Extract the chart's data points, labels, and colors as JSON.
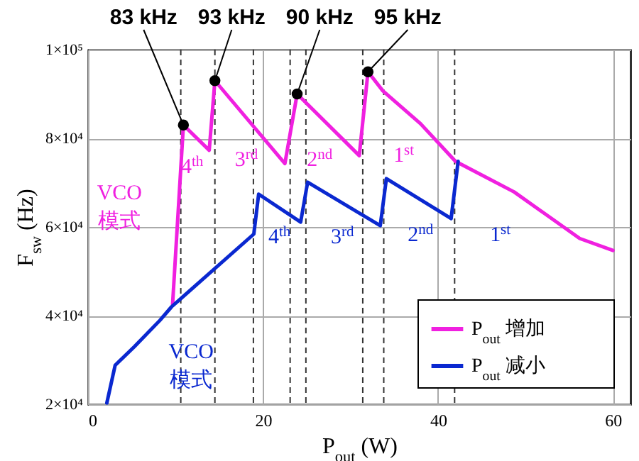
{
  "chart_data": {
    "type": "line",
    "xlabel": "P$_{out}$ (W)",
    "ylabel": "F$_{sw}$ (Hz)",
    "xlim": [
      0,
      62
    ],
    "xticks": [
      0,
      20,
      40,
      60
    ],
    "ylim": [
      20000,
      100000
    ],
    "yticks": [
      {
        "value": 20000,
        "label": "2×10⁴"
      },
      {
        "value": 40000,
        "label": "4×10⁴"
      },
      {
        "value": 60000,
        "label": "6×10⁴"
      },
      {
        "value": 80000,
        "label": "8×10⁴"
      },
      {
        "value": 100000,
        "label": "1×10⁵"
      }
    ],
    "grid": true,
    "legend": "bottom right",
    "marker": "none",
    "series": [
      {
        "name": "P$_{out}$ 增加",
        "color": "#f020e0",
        "x": [
          9.66,
          10.9,
          13.85,
          14.5,
          22.5,
          23.9,
          31.0,
          32.0,
          33.7,
          38.0,
          42.0,
          48.7,
          56.2,
          60.0
        ],
        "values": [
          42500,
          83000,
          77300,
          93000,
          74300,
          90000,
          76100,
          95000,
          90700,
          83300,
          74800,
          67900,
          57400,
          54700
        ]
      },
      {
        "name": "P$_{out}$ 减小",
        "color": "#0a28d0",
        "x": [
          2.15,
          3.1,
          5.3,
          8.2,
          9.55,
          18.95,
          19.5,
          24.3,
          25.1,
          33.4,
          34.1,
          41.5,
          42.3
        ],
        "values": [
          20300,
          28800,
          33000,
          38900,
          42000,
          58400,
          67400,
          61100,
          70100,
          60300,
          70900,
          61900,
          74800
        ]
      }
    ],
    "ref_lines": [
      {
        "axis": "x",
        "value": 10.6,
        "color": "#333333",
        "line_style": "dashed"
      },
      {
        "axis": "x",
        "value": 14.5,
        "color": "#333333",
        "line_style": "dashed"
      },
      {
        "axis": "x",
        "value": 23.1,
        "color": "#333333",
        "line_style": "dashed"
      },
      {
        "axis": "x",
        "value": 31.4,
        "color": "#333333",
        "line_style": "dashed"
      },
      {
        "axis": "x",
        "value": 18.9,
        "color": "#333333",
        "line_style": "dashed"
      },
      {
        "axis": "x",
        "value": 24.9,
        "color": "#333333",
        "line_style": "dashed"
      },
      {
        "axis": "x",
        "value": 33.8,
        "color": "#333333",
        "line_style": "dashed"
      },
      {
        "axis": "x",
        "value": 41.9,
        "color": "#333333",
        "line_style": "dashed"
      }
    ],
    "annotations": [
      {
        "text": "83 kHz",
        "x": 10.9,
        "y": 83000
      },
      {
        "text": "93 kHz",
        "x": 14.5,
        "y": 93000
      },
      {
        "text": "90 kHz",
        "x": 23.9,
        "y": 90000
      },
      {
        "text": "95 kHz",
        "x": 32.0,
        "y": 95000
      },
      "4$^{th}$",
      "3$^{rd}$",
      "2$^{nd}$",
      "1$^{st}$",
      "4$^{th}$",
      "3$^{rd}$",
      "2$^{nd}$",
      "1$^{st}$",
      "VCO\n模式",
      "VCO\n模式"
    ]
  }
}
